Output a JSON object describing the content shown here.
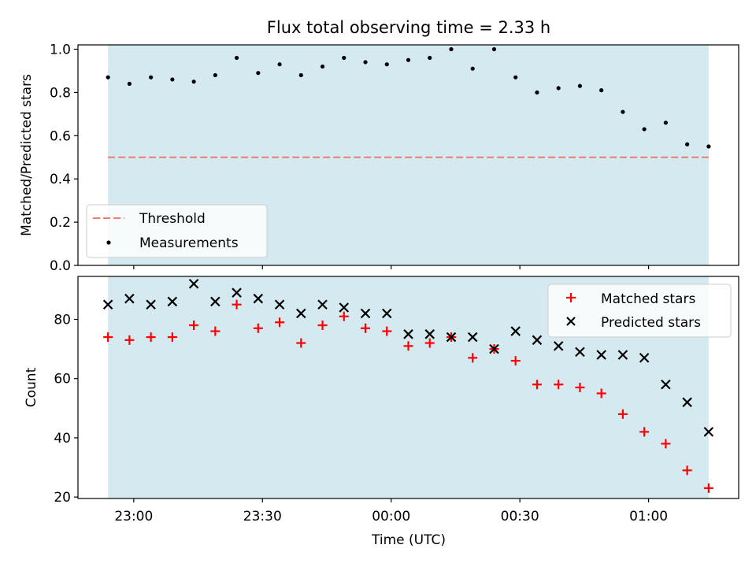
{
  "title": "Flux total observing time = 2.33 h",
  "colors": {
    "shade": "#d4eaf0",
    "threshold": "#f07b72",
    "measurement": "#000000",
    "matched": "#ff0000",
    "predicted": "#000000"
  },
  "chart_data": [
    {
      "type": "scatter",
      "ylabel": "Matched/Predicted stars",
      "xlabel": "",
      "ylim": [
        0.0,
        1.02
      ],
      "yticks": [
        0.0,
        0.2,
        0.4,
        0.6,
        0.8,
        1.0
      ],
      "ytick_labels": [
        "0.0",
        "0.2",
        "0.4",
        "0.6",
        "0.8",
        "1.0"
      ],
      "legend": {
        "placement": "lower-left",
        "entries": [
          "Threshold",
          "Measurements"
        ]
      },
      "threshold": {
        "name": "Threshold",
        "value": 0.5,
        "style": "dashed"
      },
      "series": [
        {
          "name": "Measurements",
          "marker": "dot",
          "values": [
            0.87,
            0.84,
            0.87,
            0.86,
            0.85,
            0.88,
            0.96,
            0.89,
            0.93,
            0.88,
            0.92,
            0.96,
            0.94,
            0.93,
            0.95,
            0.96,
            1.0,
            0.91,
            1.0,
            0.87,
            0.8,
            0.82,
            0.83,
            0.81,
            0.71,
            0.63,
            0.66,
            0.56,
            0.55
          ]
        }
      ]
    },
    {
      "type": "scatter",
      "ylabel": "Count",
      "xlabel": "Time (UTC)",
      "ylim": [
        19.5,
        94.5
      ],
      "yticks": [
        20,
        40,
        60,
        80
      ],
      "ytick_labels": [
        "20",
        "40",
        "60",
        "80"
      ],
      "legend": {
        "placement": "top-right",
        "entries": [
          "Matched stars",
          "Predicted stars"
        ]
      },
      "series": [
        {
          "name": "Matched stars",
          "marker": "plus",
          "values": [
            74,
            73,
            74,
            74,
            78,
            76,
            85,
            77,
            79,
            72,
            78,
            81,
            77,
            76,
            71,
            72,
            74,
            67,
            70,
            66,
            58,
            58,
            57,
            55,
            48,
            42,
            38,
            29,
            23
          ]
        },
        {
          "name": "Predicted stars",
          "marker": "x",
          "values": [
            85,
            87,
            85,
            86,
            92,
            86,
            89,
            87,
            85,
            82,
            85,
            84,
            82,
            82,
            75,
            75,
            74,
            74,
            70,
            76,
            73,
            71,
            69,
            68,
            68,
            67,
            58,
            52,
            42
          ]
        }
      ]
    }
  ],
  "shared_x": {
    "label": "Time (UTC)",
    "tick_labels": [
      "23:00",
      "23:30",
      "00:00",
      "00:30",
      "01:00"
    ],
    "tick_minutes": [
      0,
      30,
      60,
      90,
      120
    ],
    "sample_minutes": [
      -6.0,
      -1.0,
      4.0,
      9.0,
      14.0,
      19.0,
      24.0,
      29.0,
      34.0,
      39.0,
      44.0,
      49.0,
      54.0,
      59.0,
      64.0,
      69.0,
      74.0,
      79.0,
      84.0,
      89.0,
      94.0,
      99.0,
      104.0,
      109.0,
      114.0,
      119.0,
      124.0,
      129.0,
      134.0
    ],
    "xlim_minutes": [
      -13.0,
      141.0
    ],
    "shaded_span_minutes": [
      -6.0,
      134.0
    ]
  }
}
